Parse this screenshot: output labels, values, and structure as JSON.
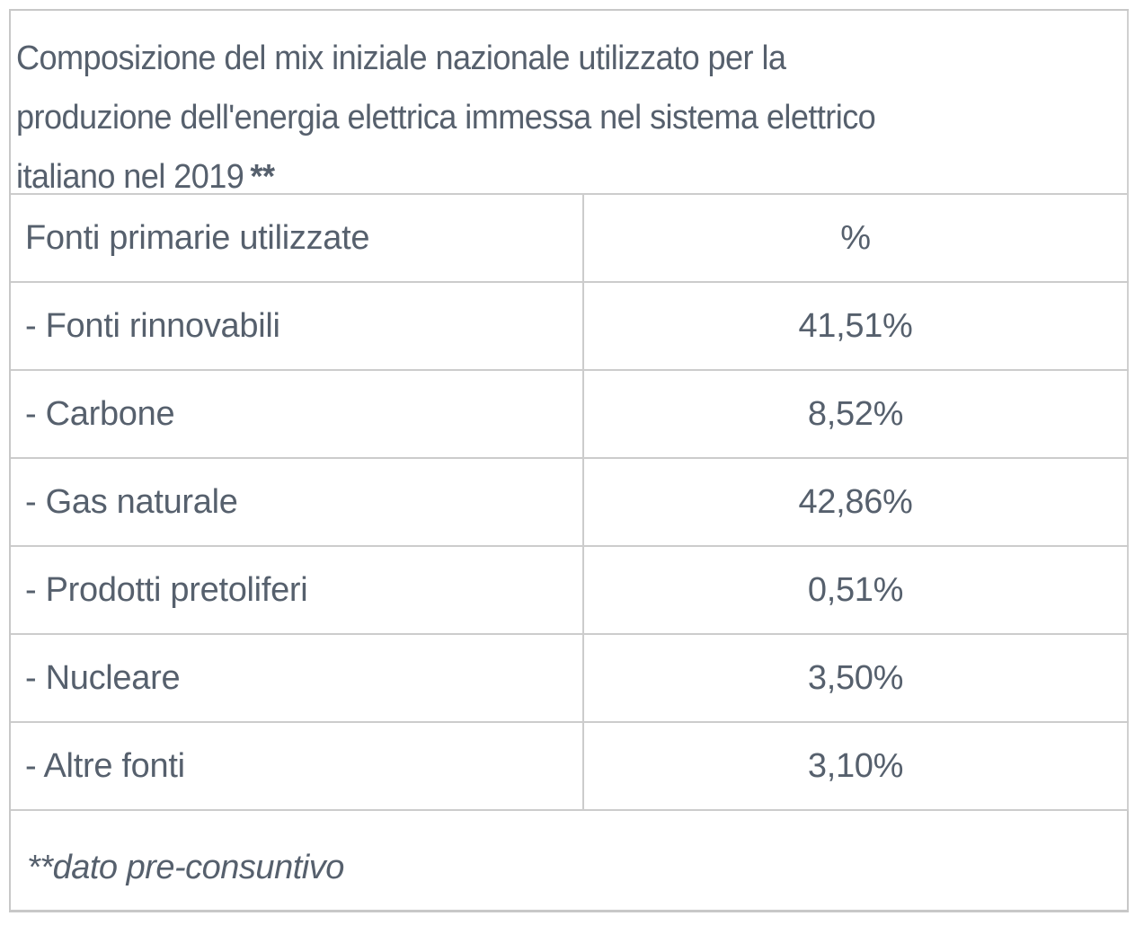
{
  "title": {
    "line1": "Composizione del mix iniziale nazionale utilizzato per la",
    "line2": "produzione dell'energia elettrica immessa nel sistema elettrico",
    "line3": "italiano nel 2019",
    "stars": "**"
  },
  "table": {
    "header": {
      "label": "Fonti primarie utilizzate",
      "value": "%"
    },
    "rows": [
      {
        "label": "- Fonti rinnovabili",
        "value": "41,51%"
      },
      {
        "label": "- Carbone",
        "value": "8,52%"
      },
      {
        "label": "- Gas naturale",
        "value": "42,86%"
      },
      {
        "label": "- Prodotti pretoliferi",
        "value": "0,51%"
      },
      {
        "label": "- Nucleare",
        "value": "3,50%"
      },
      {
        "label": "- Altre fonti",
        "value": "3,10%"
      }
    ]
  },
  "footnote": "**dato pre-consuntivo",
  "colors": {
    "text": "#56606d",
    "border": "#c8c8c8",
    "background": "#ffffff"
  }
}
